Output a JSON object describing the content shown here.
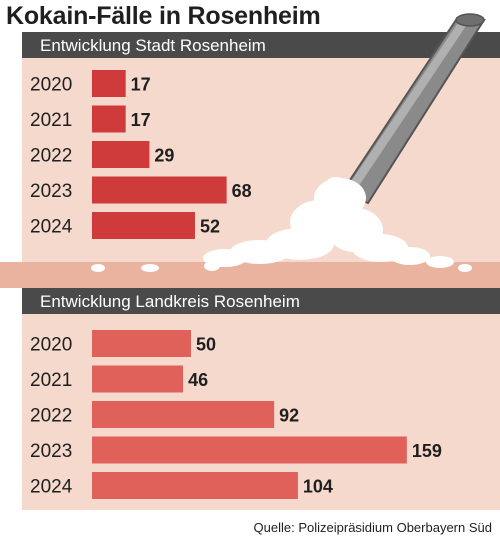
{
  "title": "Kokain-Fälle in Rosenheim",
  "source": "Quelle: Polizeipräsidium Oberbayern Süd",
  "colors": {
    "panel_bg": "#f6d9cd",
    "header_bar": "#4a4a4a",
    "bar_stadt": "#cf3a3a",
    "bar_landkreis": "#e0605a",
    "divider": "#e9b3a0"
  },
  "chart_data": [
    {
      "type": "bar",
      "orientation": "horizontal",
      "title": "Entwicklung Stadt Rosenheim",
      "categories": [
        "2020",
        "2021",
        "2022",
        "2023",
        "2024"
      ],
      "values": [
        17,
        17,
        29,
        68,
        52
      ]
    },
    {
      "type": "bar",
      "orientation": "horizontal",
      "title": "Entwicklung Landkreis Rosenheim",
      "categories": [
        "2020",
        "2021",
        "2022",
        "2023",
        "2024"
      ],
      "values": [
        50,
        46,
        92,
        159,
        104
      ]
    }
  ]
}
